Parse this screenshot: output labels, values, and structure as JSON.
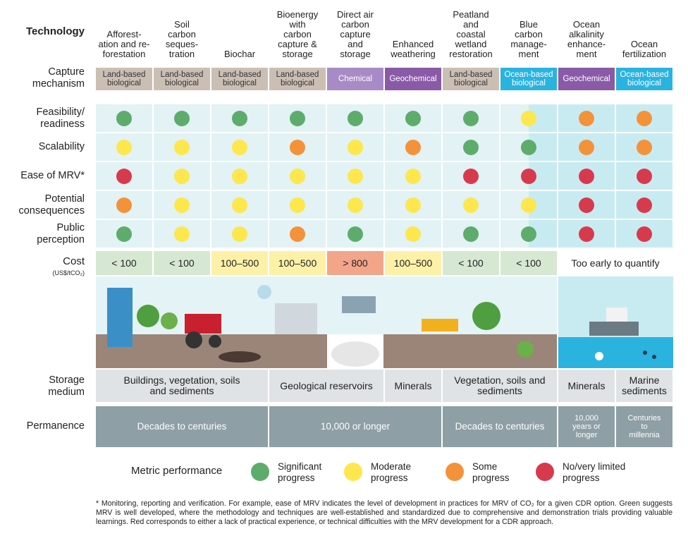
{
  "header": {
    "technology_label": "Technology",
    "mechanism_label": "Capture\nmechanism",
    "cost_label": "Cost",
    "cost_unit": "(US$/tCO₂)",
    "storage_label": "Storage\nmedium",
    "permanence_label": "Permanence"
  },
  "technologies": [
    "Afforest-\nation and re-\nforestation",
    "Soil\ncarbon\nseques-\ntration",
    "Biochar",
    "Bioenergy\nwith\ncarbon\ncapture &\nstorage",
    "Direct air\ncarbon\ncapture\nand\nstorage",
    "Enhanced\nweathering",
    "Peatland\nand\ncoastal\nwetland\nrestoration",
    "Blue\ncarbon\nmanage-\nment",
    "Ocean\nalkalinity\nenhance-\nment",
    "Ocean\nfertilization"
  ],
  "mechanisms": [
    {
      "text": "Land-based\nbiological",
      "color": "#cbbfb4"
    },
    {
      "text": "Land-based\nbiological",
      "color": "#cbbfb4"
    },
    {
      "text": "Land-based\nbiological",
      "color": "#cbbfb4"
    },
    {
      "text": "Land-based\nbiological",
      "color": "#cbbfb4"
    },
    {
      "text": "Chemical",
      "color": "#a88bc6"
    },
    {
      "text": "Geochemical",
      "color": "#8a5aa8"
    },
    {
      "text": "Land-based\nbiological",
      "color": "#cbbfb4"
    },
    {
      "text": "Ocean-based\nbiological",
      "color": "#29b3e0"
    },
    {
      "text": "Geochemical",
      "color": "#8a5aa8"
    },
    {
      "text": "Ocean-based\nbiological",
      "color": "#29b3e0"
    }
  ],
  "metrics": [
    {
      "label": "Feasibility/\nreadiness",
      "ratings": [
        0,
        0,
        0,
        0,
        0,
        0,
        0,
        1,
        2,
        2
      ]
    },
    {
      "label": "Scalability",
      "ratings": [
        1,
        1,
        1,
        2,
        1,
        2,
        0,
        0,
        2,
        2
      ]
    },
    {
      "label": "Ease of MRV*",
      "ratings": [
        3,
        1,
        1,
        1,
        1,
        1,
        3,
        3,
        3,
        3
      ]
    },
    {
      "label": "Potential\nconsequences",
      "ratings": [
        2,
        1,
        1,
        1,
        1,
        1,
        1,
        1,
        3,
        3
      ]
    },
    {
      "label": "Public\nperception",
      "ratings": [
        0,
        1,
        1,
        2,
        0,
        1,
        0,
        0,
        3,
        3
      ]
    }
  ],
  "cost": [
    {
      "text": "< 100",
      "color": "#d6e8d2",
      "span": 1
    },
    {
      "text": "< 100",
      "color": "#d6e8d2",
      "span": 1
    },
    {
      "text": "100–500",
      "color": "#fdf1a8",
      "span": 1
    },
    {
      "text": "100–500",
      "color": "#fdf1a8",
      "span": 1
    },
    {
      "text": "> 800",
      "color": "#f3a58a",
      "span": 1
    },
    {
      "text": "100–500",
      "color": "#fdf1a8",
      "span": 1
    },
    {
      "text": "< 100",
      "color": "#d6e8d2",
      "span": 1
    },
    {
      "text": "< 100",
      "color": "#d6e8d2",
      "span": 1
    },
    {
      "text": "Too early to quantify",
      "color": "#ffffff",
      "span": 2
    }
  ],
  "storage": [
    {
      "text": "Buildings, vegetation, soils\nand sediments",
      "span": 3
    },
    {
      "text": "Geological reservoirs",
      "span": 2
    },
    {
      "text": "Minerals",
      "span": 1
    },
    {
      "text": "Vegetation, soils and\nsediments",
      "span": 2
    },
    {
      "text": "Minerals",
      "span": 1
    },
    {
      "text": "Marine\nsediments",
      "span": 1
    }
  ],
  "permanence": [
    {
      "text": "Decades to centuries",
      "span": 3
    },
    {
      "text": "10,000 or longer",
      "span": 3
    },
    {
      "text": "Decades to centuries",
      "span": 2
    },
    {
      "text": "10,000\nyears or\nlonger",
      "span": 1
    },
    {
      "text": "Centuries\nto\nmillennia",
      "span": 1
    }
  ],
  "legend": {
    "title": "Metric performance",
    "items": [
      {
        "label": "Significant\nprogress",
        "color": "#5dac6c"
      },
      {
        "label": "Moderate\nprogress",
        "color": "#fde74c"
      },
      {
        "label": "Some\nprogress",
        "color": "#f4923a"
      },
      {
        "label": "No/very limited\nprogress",
        "color": "#d83a4d"
      }
    ]
  },
  "footnote": "* Monitoring, reporting and verification. For example, ease of MRV indicates the level of development in practices for MRV of CO₂ for a given CDR option. Green suggests MRV is well developed, where the methodology and techniques are well-established and standardized due to comprehensive and demonstration trials providing valuable learnings. Red corresponds to either a lack of practical experience, or technical difficulties with the MRV development for a CDR approach."
}
